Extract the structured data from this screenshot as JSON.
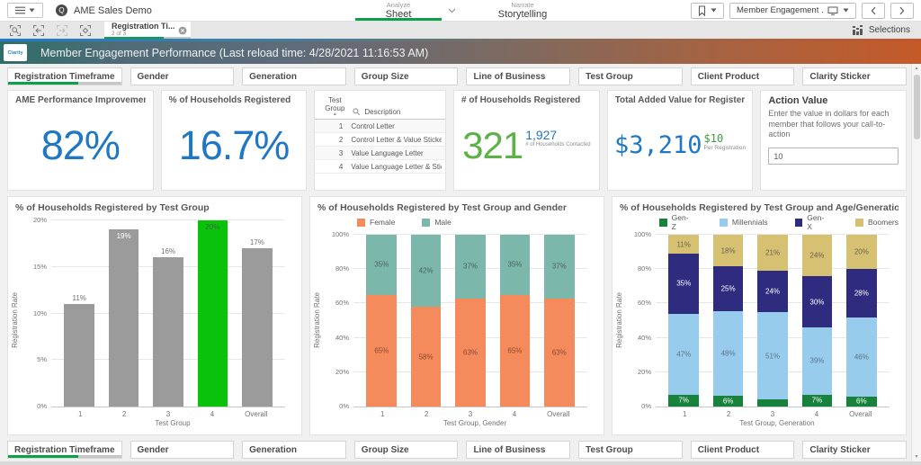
{
  "topbar": {
    "app_title": "AME Sales Demo",
    "analyze_label": "Analyze",
    "sheet_label": "Sheet",
    "narrate_label": "Narrate",
    "storytelling_label": "Storytelling",
    "sheet_selector_label": "Member Engagement ...",
    "selections_label": "Selections"
  },
  "tabbar": {
    "tab_title": "Registration Ti...",
    "tab_position": "2 of 3"
  },
  "banner": {
    "logo_text": "Clarity",
    "title": "Member Engagement Performance (Last reload time: 4/28/2021 11:16:53 AM)"
  },
  "filters": [
    "Registration Timeframe",
    "Gender",
    "Generation",
    "Group Size",
    "Line of Business",
    "Test Group",
    "Client Product",
    "Clarity Sticker"
  ],
  "kpis": {
    "ame_improvement": {
      "title": "AME Performance Improvement (vs. C...",
      "value": "82%"
    },
    "pct_households_registered": {
      "title": "% of Households Registered",
      "value": "16.7%"
    },
    "households_registered": {
      "title": "# of Households Registered",
      "value": "321",
      "secondary_value": "1,927",
      "secondary_label": "# of Households Contacted"
    },
    "total_added_value": {
      "title": "Total Added Value for Registered Hous...",
      "value": "$3,210",
      "secondary_value": "$10",
      "secondary_label": "Per Registration"
    },
    "action_value": {
      "title": "Action Value",
      "description": "Enter the value in dollars for each member that follows your call-to-action",
      "input_value": "10"
    }
  },
  "test_group_table": {
    "col1": "Test Group",
    "col2": "Description",
    "rows": [
      {
        "group": "1",
        "description": "Control Letter"
      },
      {
        "group": "2",
        "description": "Control Letter & Value Sticker"
      },
      {
        "group": "3",
        "description": "Value Language Letter"
      },
      {
        "group": "4",
        "description": "Value Language Letter & Sticker"
      }
    ]
  },
  "chart_data": [
    {
      "type": "bar",
      "title": "% of Households Registered by Test Group",
      "xlabel": "Test Group",
      "ylabel": "Registration Rate",
      "categories": [
        "1",
        "2",
        "3",
        "4",
        "Overall"
      ],
      "values": [
        11,
        19,
        16,
        20,
        17
      ],
      "labels": [
        "11%",
        "19%",
        "16%",
        "20%",
        "17%"
      ],
      "label_pos": [
        "above",
        "inside",
        "above",
        "inside",
        "above"
      ],
      "label_colors": [
        "#737373",
        "#ffffff",
        "#737373",
        "#456345",
        "#737373"
      ],
      "bar_colors": [
        "#9b9b9b",
        "#9b9b9b",
        "#9b9b9b",
        "#0bc20b",
        "#9b9b9b"
      ],
      "ylim": [
        0,
        20
      ],
      "yticks": [
        "0%",
        "5%",
        "10%",
        "15%",
        "20%"
      ],
      "grid": true,
      "legend_position": "none"
    },
    {
      "type": "stacked-bar",
      "title": "% of Households Registered by Test Group and Gender",
      "xlabel": "Test Group, Gender",
      "ylabel": "Registration Rate",
      "categories": [
        "1",
        "2",
        "3",
        "4",
        "Overall"
      ],
      "series": [
        {
          "name": "Female",
          "color": "#f58a5d",
          "label_color": "#8a4a30",
          "values": [
            65,
            58,
            63,
            65,
            63
          ]
        },
        {
          "name": "Male",
          "color": "#7cb7ab",
          "label_color": "#47635d",
          "values": [
            35,
            42,
            37,
            35,
            37
          ]
        }
      ],
      "ylim": [
        0,
        100
      ],
      "yticks": [
        "0%",
        "20%",
        "40%",
        "60%",
        "80%",
        "100%"
      ],
      "grid": true,
      "legend_position": "top"
    },
    {
      "type": "stacked-bar",
      "title": "% of Households Registered by Test Group and Age/Generation",
      "xlabel": "Test Group, Generation",
      "ylabel": "Registration Rate",
      "categories": [
        "1",
        "2",
        "3",
        "4",
        "Overall"
      ],
      "series": [
        {
          "name": "Gen-Z",
          "color": "#17823b",
          "label_color": "#ffffff",
          "values": [
            7,
            6,
            4,
            7,
            6
          ],
          "labels": [
            "7%",
            "6%",
            "",
            "7%",
            "6%"
          ]
        },
        {
          "name": "Millennials",
          "color": "#97ccec",
          "label_color": "#5d7389",
          "values": [
            47,
            48,
            51,
            39,
            46
          ]
        },
        {
          "name": "Gen-X",
          "color": "#2f2c80",
          "label_color": "#ffffff",
          "values": [
            35,
            25,
            24,
            30,
            28
          ]
        },
        {
          "name": "Boomers",
          "color": "#d6c173",
          "label_color": "#6d6248",
          "values": [
            11,
            18,
            21,
            24,
            20
          ]
        }
      ],
      "ylim": [
        0,
        100
      ],
      "yticks": [
        "0%",
        "20%",
        "40%",
        "60%",
        "80%",
        "100%"
      ],
      "grid": true,
      "legend_position": "top"
    }
  ],
  "colors": {
    "accent_green": "#0ca04b",
    "kpi_blue": "#2077c2",
    "kpi_green": "#5cb246",
    "highlight_bar_green": "#0bc20b",
    "banner_gradient_start": "#2e6e69",
    "banner_gradient_end": "#c45a28"
  }
}
